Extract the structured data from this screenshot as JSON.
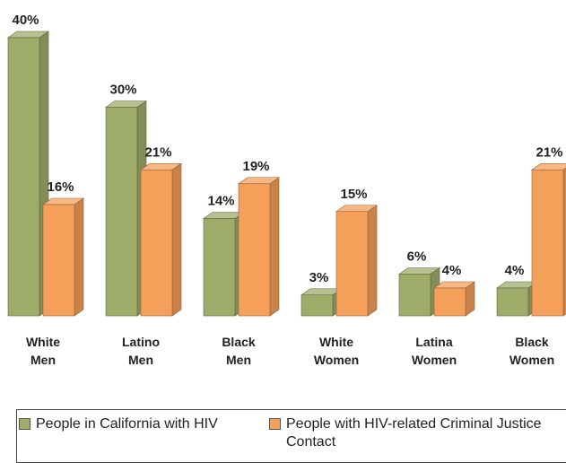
{
  "chart_data": {
    "type": "bar",
    "categories": [
      [
        "White",
        "Men"
      ],
      [
        "Latino",
        "Men"
      ],
      [
        "Black",
        "Men"
      ],
      [
        "White",
        "Women"
      ],
      [
        "Latina",
        "Women"
      ],
      [
        "Black",
        "Women"
      ]
    ],
    "series": [
      {
        "name": "People in California with HIV",
        "color": "#9eac6a",
        "values": [
          40,
          30,
          14,
          3,
          6,
          4
        ],
        "labels": [
          "40%",
          "30%",
          "14%",
          "3%",
          "6%",
          "4%"
        ]
      },
      {
        "name": "People with HIV-related Criminal Justice Contact",
        "color": "#f5a05a",
        "values": [
          16,
          21,
          19,
          15,
          4,
          21
        ],
        "labels": [
          "16%",
          "21%",
          "19%",
          "15%",
          "4%",
          "21%"
        ]
      }
    ],
    "value_suffix": "%",
    "ylim": [
      0,
      40
    ],
    "style": "3d-column",
    "legend_position": "bottom"
  },
  "legend": {
    "items": [
      {
        "label": "People in California with HIV",
        "color": "#9eac6a"
      },
      {
        "label": "People with HIV-related Criminal Justice Contact",
        "color": "#f5a05a"
      }
    ]
  }
}
